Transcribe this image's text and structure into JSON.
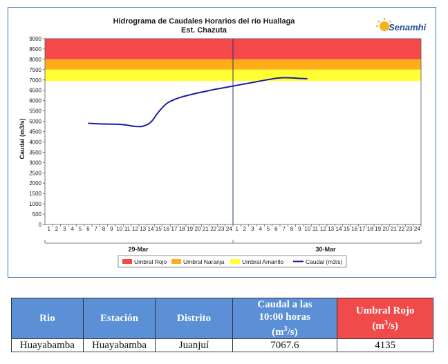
{
  "chart_data": {
    "type": "line",
    "title": "Hidrograma de Caudales Horarios del río Huallaga",
    "subtitle": "Est. Chazuta",
    "ylabel": "Caudal  (m3/s)",
    "ylim": [
      0,
      9000
    ],
    "y_ticks": [
      "0",
      "500",
      "1000",
      "1500",
      "2000",
      "2500",
      "3000",
      "3500",
      "4000",
      "4500",
      "5000",
      "5500",
      "6000",
      "6500",
      "7000",
      "7500",
      "8000",
      "8500",
      "9000"
    ],
    "x_ticks_day1": [
      "1",
      "2",
      "3",
      "4",
      "5",
      "6",
      "7",
      "8",
      "9",
      "10",
      "11",
      "12",
      "13",
      "14",
      "15",
      "16",
      "17",
      "18",
      "19",
      "20",
      "21",
      "22",
      "23",
      "24"
    ],
    "x_ticks_day2": [
      "1",
      "2",
      "3",
      "4",
      "5",
      "6",
      "7",
      "8",
      "9",
      "10",
      "11",
      "12",
      "13",
      "14",
      "15",
      "16",
      "17",
      "18",
      "19",
      "20",
      "21",
      "22",
      "23",
      "24"
    ],
    "date_labels": [
      "29-Mar",
      "30-Mar"
    ],
    "bands": [
      {
        "name": "Umbral Rojo",
        "from": 8000,
        "to": 9000,
        "color": "#f54848"
      },
      {
        "name": "Umbral Naranja",
        "from": 7500,
        "to": 8000,
        "color": "#ffae1a"
      },
      {
        "name": "Umbral Amarillo",
        "from": 6950,
        "to": 7500,
        "color": "#ffff33"
      }
    ],
    "series": [
      {
        "name": "Caudal (m3/s)",
        "color": "#1a1aa8",
        "x": [
          6,
          7,
          8,
          9,
          10,
          11,
          12,
          13,
          14,
          15,
          16,
          17,
          18,
          19,
          20,
          21,
          22,
          23,
          24,
          25,
          26,
          27,
          28,
          29,
          30,
          31,
          32,
          33,
          34
        ],
        "values": [
          4900,
          4880,
          4870,
          4860,
          4850,
          4810,
          4750,
          4760,
          4950,
          5450,
          5850,
          6050,
          6180,
          6280,
          6370,
          6450,
          6530,
          6600,
          6670,
          6740,
          6810,
          6880,
          6950,
          7020,
          7080,
          7110,
          7100,
          7075,
          7060
        ]
      }
    ],
    "legend": [
      "Umbral Rojo",
      "Umbral Naranja",
      "Umbral Amarillo",
      "Caudal (m3/s)"
    ],
    "legend_position": "bottom",
    "grid": false
  },
  "logo": {
    "name": "Senamhi",
    "icon": "sun-logo-icon"
  },
  "table": {
    "headers": {
      "rio": "Rio",
      "estacion": "Estación",
      "distrito": "Distrito",
      "caudal_line1": "Caudal a las",
      "caudal_line2": "10:00 horas",
      "caudal_unit_base": "(m",
      "caudal_unit_sup": "3",
      "caudal_unit_end": "/s)",
      "umbral_line1": "Umbral Rojo",
      "umbral_unit_base": "(m",
      "umbral_unit_sup": "3",
      "umbral_unit_end": "/s)"
    },
    "row": {
      "rio": "Huayabamba",
      "estacion": "Huayabamba",
      "distrito": "Juanjuí",
      "caudal": "7067.6",
      "umbral": "4135"
    },
    "header_color": "#5b8fd6",
    "umbral_color": "#f04a4a"
  }
}
